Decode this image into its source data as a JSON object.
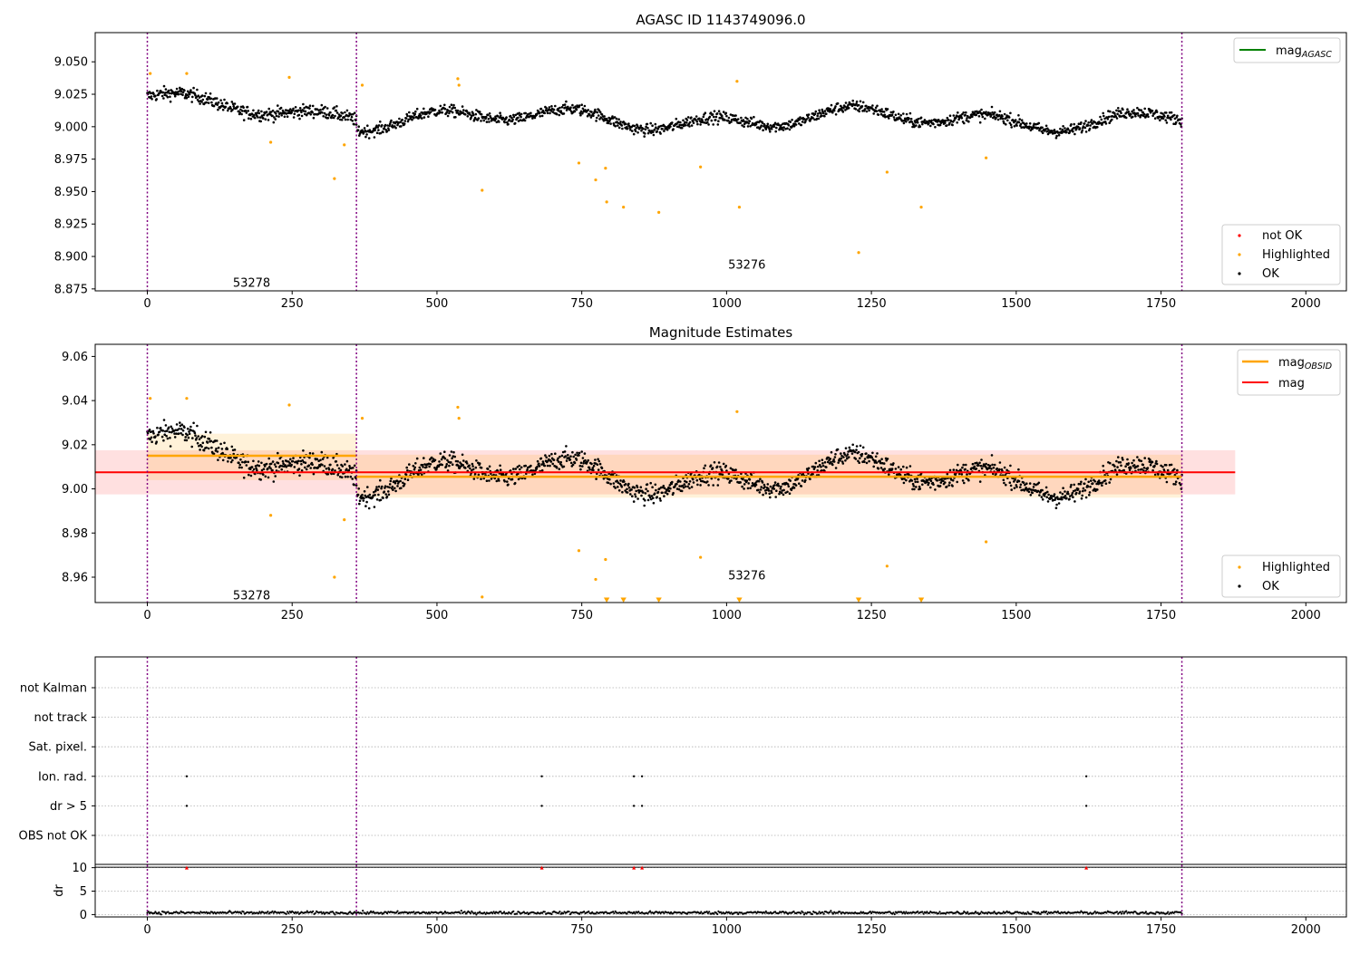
{
  "chart_data": [
    {
      "type": "scatter",
      "title": "AGASC ID 1143749096.0",
      "xlim": [
        -90,
        2070
      ],
      "ylim": [
        8.8735,
        9.0725
      ],
      "xticks": [
        "0",
        "250",
        "500",
        "750",
        "1000",
        "1250",
        "1500",
        "1750",
        "2000"
      ],
      "xtick_values": [
        0,
        250,
        500,
        750,
        1000,
        1250,
        1500,
        1750,
        2000
      ],
      "yticks": [
        "8.875",
        "8.900",
        "8.925",
        "8.950",
        "8.975",
        "9.000",
        "9.025",
        "9.050"
      ],
      "ytick_values": [
        8.875,
        8.9,
        8.925,
        8.95,
        8.975,
        9.0,
        9.025,
        9.05
      ],
      "grid": false,
      "vlines": [
        0,
        361,
        1786
      ],
      "obsid_labels": [
        {
          "text": "53278",
          "x": 180,
          "y": 8.88
        },
        {
          "text": "53276",
          "x": 1035,
          "y": 8.894
        }
      ],
      "legend_top": {
        "position": "top-right",
        "items": [
          {
            "label": "mag",
            "sub": "AGASC",
            "color": "#008000"
          }
        ]
      },
      "legend_bottom": {
        "position": "bottom-right",
        "items": [
          {
            "label": "not OK",
            "color": "#ff0000"
          },
          {
            "label": "Highlighted",
            "color": "#ffa500"
          },
          {
            "label": "OK",
            "color": "#000000"
          }
        ]
      },
      "series": [
        {
          "name": "OK",
          "color": "#000000",
          "segments": [
            {
              "x_start": 0,
              "x_end": 361,
              "base": 9.02,
              "base_end": 9.009,
              "scatter": 0.009,
              "wave": 0.007
            },
            {
              "x_start": 361,
              "x_end": 1786,
              "base": 9.006,
              "base_end": 9.006,
              "scatter": 0.008,
              "wave": 0.009
            }
          ]
        },
        {
          "name": "Highlighted",
          "color": "#ffa500",
          "x": [
            5,
            68,
            213,
            245,
            323,
            340,
            371,
            536,
            538,
            578,
            745,
            774,
            791,
            793,
            822,
            883,
            955,
            1018,
            1022,
            1228,
            1277,
            1336,
            1448
          ],
          "y": [
            9.041,
            9.041,
            8.988,
            9.038,
            8.96,
            8.986,
            9.032,
            9.037,
            9.032,
            8.951,
            8.972,
            8.959,
            8.968,
            8.942,
            8.938,
            8.934,
            8.969,
            9.035,
            8.938,
            8.903,
            8.965,
            8.938,
            8.976
          ]
        }
      ]
    },
    {
      "type": "scatter",
      "title": "Magnitude Estimates",
      "xlim": [
        -90,
        2070
      ],
      "ylim": [
        8.9485,
        9.0655
      ],
      "xticks": [
        "0",
        "250",
        "500",
        "750",
        "1000",
        "1250",
        "1500",
        "1750",
        "2000"
      ],
      "xtick_values": [
        0,
        250,
        500,
        750,
        1000,
        1250,
        1500,
        1750,
        2000
      ],
      "yticks": [
        "8.96",
        "8.98",
        "9.00",
        "9.02",
        "9.04",
        "9.06"
      ],
      "ytick_values": [
        8.96,
        8.98,
        9.0,
        9.02,
        9.04,
        9.06
      ],
      "grid": false,
      "vlines": [
        0,
        361,
        1786
      ],
      "obsid_labels": [
        {
          "text": "53278",
          "x": 180,
          "y": 8.952
        },
        {
          "text": "53276",
          "x": 1035,
          "y": 8.961
        }
      ],
      "mag": {
        "value": 9.0075,
        "band_low": 8.9975,
        "band_high": 9.0175,
        "x_start": -90,
        "x_end": 1878,
        "color": "#ff0000"
      },
      "mag_obsid": [
        {
          "x_start": 0,
          "x_end": 361,
          "value": 9.015,
          "band_low": 9.004,
          "band_high": 9.025
        },
        {
          "x_start": 361,
          "x_end": 1786,
          "value": 9.0055,
          "band_low": 8.996,
          "band_high": 9.0155
        }
      ],
      "mag_obsid_color": "#ffa500",
      "legend_top": {
        "position": "top-right",
        "items": [
          {
            "label": "mag",
            "sub": "OBSID",
            "color": "#ffa500"
          },
          {
            "label": "mag",
            "sub": "",
            "color": "#ff0000"
          }
        ]
      },
      "legend_bottom": {
        "position": "bottom-right",
        "items": [
          {
            "label": "Highlighted",
            "color": "#ffa500"
          },
          {
            "label": "OK",
            "color": "#000000"
          }
        ]
      },
      "series": [
        {
          "name": "OK",
          "color": "#000000",
          "segments": [
            {
              "x_start": 0,
              "x_end": 361,
              "base": 9.02,
              "base_end": 9.009,
              "scatter": 0.009,
              "wave": 0.007
            },
            {
              "x_start": 361,
              "x_end": 1786,
              "base": 9.006,
              "base_end": 9.006,
              "scatter": 0.008,
              "wave": 0.009
            }
          ]
        },
        {
          "name": "Highlighted",
          "color": "#ffa500",
          "x": [
            5,
            68,
            213,
            245,
            323,
            340,
            371,
            536,
            538,
            578,
            745,
            774,
            791,
            955,
            1018,
            1277,
            1448
          ],
          "y": [
            9.041,
            9.041,
            8.988,
            9.038,
            8.96,
            8.986,
            9.032,
            9.037,
            9.032,
            8.951,
            8.972,
            8.959,
            8.968,
            8.969,
            9.035,
            8.965,
            8.976
          ]
        },
        {
          "name": "Highlighted (off-scale)",
          "color": "#ffa500",
          "marker": "triangle-down",
          "x": [
            793,
            822,
            883,
            1022,
            1228,
            1336
          ]
        }
      ]
    },
    {
      "type": "scatter",
      "xlim": [
        -90,
        2070
      ],
      "flag_rows": [
        "not Kalman",
        "not track",
        "Sat. pixel.",
        "Ion. rad.",
        "dr > 5",
        "OBS not OK"
      ],
      "flag_points": [
        {
          "row": "Ion. rad.",
          "x": [
            68,
            681,
            840,
            854,
            1621
          ]
        },
        {
          "row": "dr > 5",
          "x": [
            68,
            681,
            840,
            854,
            1621
          ]
        }
      ],
      "vlines": [
        0,
        361,
        1786
      ],
      "dr": {
        "ylabel": "dr",
        "ylim": [
          -0.5,
          10.7
        ],
        "yticks": [
          "0",
          "5",
          "10"
        ],
        "ytick_values": [
          0,
          5,
          10
        ],
        "xticks": [
          "0",
          "250",
          "500",
          "750",
          "1000",
          "1250",
          "1500",
          "1750",
          "2000"
        ],
        "xtick_values": [
          0,
          250,
          500,
          750,
          1000,
          1250,
          1500,
          1750,
          2000
        ],
        "threshold": 10,
        "clipped_points": {
          "x": [
            68,
            681,
            840,
            854,
            1621
          ],
          "y": 10,
          "color": "#ff0000"
        },
        "baseline": {
          "x_start": 0,
          "x_end": 1786,
          "mean": 0.4,
          "spread": 0.3
        }
      }
    }
  ]
}
